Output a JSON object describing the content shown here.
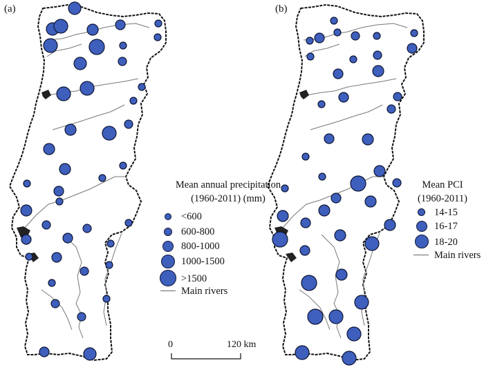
{
  "panels": [
    {
      "label": "(a)",
      "legend": {
        "title_line1": "Mean annual precipitation",
        "title_line2": "(1960-2011) (mm)",
        "classes": [
          {
            "label": "<600",
            "size_rank": 1
          },
          {
            "label": "600-800",
            "size_rank": 2
          },
          {
            "label": "800-1000",
            "size_rank": 3
          },
          {
            "label": "1000-1500",
            "size_rank": 4
          },
          {
            "label": ">1500",
            "size_rank": 5
          }
        ],
        "rivers_label": "Main rivers"
      }
    },
    {
      "label": "(b)",
      "legend": {
        "title_line1": "Mean PCI",
        "title_line2": "(1960-2011)",
        "classes": [
          {
            "label": "14-15",
            "size_rank": 1
          },
          {
            "label": "16-17",
            "size_rank": 2
          },
          {
            "label": "18-20",
            "size_rank": 3
          }
        ],
        "rivers_label": "Main rivers"
      }
    }
  ],
  "scale_bar": {
    "start_label": "0",
    "end_label": "120 km"
  },
  "colors": {
    "symbol_fill": "#3f5fbd",
    "symbol_stroke": "#0c1533",
    "outline": "#111111",
    "river": "#666666"
  }
}
